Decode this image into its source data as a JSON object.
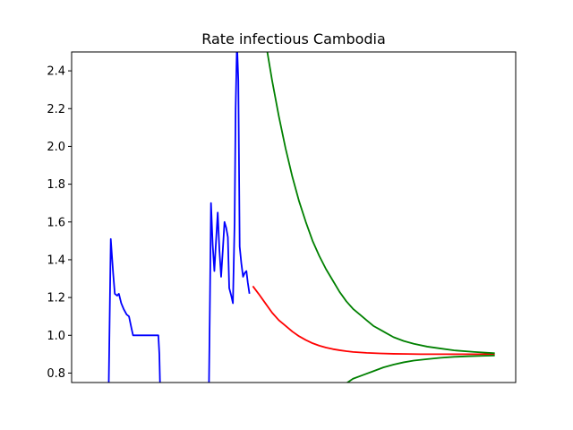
{
  "chart_data": {
    "type": "line",
    "title": "Rate infectious Cambodia",
    "xlabel": "",
    "ylabel": "",
    "ylim": [
      0.75,
      2.5
    ],
    "xlim": [
      -3.4,
      128.2
    ],
    "grid": false,
    "x_ticks_shown": false,
    "yticks": [
      0.8,
      1.0,
      1.2,
      1.4,
      1.6,
      1.8,
      2.0,
      2.2,
      2.4
    ],
    "series": [
      {
        "color": "#0000ff",
        "segments": [
          [
            [
              7.6,
              0.74
            ],
            [
              7.8,
              1.0
            ],
            [
              8.2,
              1.51
            ],
            [
              8.9,
              1.33
            ],
            [
              9.4,
              1.22
            ],
            [
              10.1,
              1.21
            ],
            [
              10.6,
              1.22
            ],
            [
              11.3,
              1.17
            ],
            [
              12.0,
              1.14
            ],
            [
              12.9,
              1.11
            ],
            [
              13.6,
              1.1
            ],
            [
              14.3,
              1.04
            ],
            [
              14.8,
              1.0
            ],
            [
              16.0,
              1.0
            ],
            [
              17.6,
              1.0
            ],
            [
              19.3,
              1.0
            ],
            [
              20.7,
              1.0
            ],
            [
              22.3,
              1.0
            ],
            [
              22.6,
              0.9
            ],
            [
              22.8,
              0.74
            ]
          ],
          [
            [
              37.3,
              0.74
            ],
            [
              37.6,
              1.2
            ],
            [
              37.9,
              1.7
            ],
            [
              38.4,
              1.48
            ],
            [
              38.9,
              1.34
            ],
            [
              39.4,
              1.5
            ],
            [
              39.9,
              1.65
            ],
            [
              40.4,
              1.45
            ],
            [
              40.9,
              1.31
            ],
            [
              41.4,
              1.45
            ],
            [
              41.9,
              1.6
            ],
            [
              42.4,
              1.57
            ],
            [
              42.9,
              1.52
            ],
            [
              43.3,
              1.25
            ],
            [
              43.9,
              1.21
            ],
            [
              44.4,
              1.17
            ],
            [
              44.9,
              1.6
            ],
            [
              45.2,
              2.2
            ],
            [
              45.6,
              2.55
            ],
            [
              46.0,
              2.35
            ],
            [
              46.4,
              1.47
            ],
            [
              46.9,
              1.38
            ],
            [
              47.4,
              1.31
            ],
            [
              47.9,
              1.33
            ],
            [
              48.4,
              1.34
            ],
            [
              48.8,
              1.28
            ],
            [
              49.3,
              1.22
            ]
          ]
        ]
      },
      {
        "color": "#ff0000",
        "points": [
          [
            50.3,
            1.26
          ],
          [
            52,
            1.22
          ],
          [
            54,
            1.17
          ],
          [
            56,
            1.12
          ],
          [
            58,
            1.08
          ],
          [
            60,
            1.05
          ],
          [
            62,
            1.02
          ],
          [
            64,
            0.995
          ],
          [
            66,
            0.975
          ],
          [
            68,
            0.958
          ],
          [
            70,
            0.945
          ],
          [
            72,
            0.935
          ],
          [
            74,
            0.927
          ],
          [
            76,
            0.921
          ],
          [
            78,
            0.916
          ],
          [
            80,
            0.912
          ],
          [
            84,
            0.907
          ],
          [
            88,
            0.904
          ],
          [
            92,
            0.902
          ],
          [
            96,
            0.901
          ],
          [
            100,
            0.9
          ],
          [
            110,
            0.9
          ],
          [
            122,
            0.9
          ]
        ]
      },
      {
        "color": "#008000",
        "points": [
          [
            54.5,
            2.51
          ],
          [
            56,
            2.35
          ],
          [
            58,
            2.16
          ],
          [
            60,
            1.99
          ],
          [
            62,
            1.84
          ],
          [
            64,
            1.71
          ],
          [
            66,
            1.6
          ],
          [
            68,
            1.5
          ],
          [
            70,
            1.42
          ],
          [
            72,
            1.35
          ],
          [
            74,
            1.29
          ],
          [
            76,
            1.23
          ],
          [
            78,
            1.18
          ],
          [
            80,
            1.14
          ],
          [
            82,
            1.11
          ],
          [
            84,
            1.08
          ],
          [
            86,
            1.05
          ],
          [
            88,
            1.03
          ],
          [
            90,
            1.01
          ],
          [
            92,
            0.99
          ],
          [
            95,
            0.97
          ],
          [
            98,
            0.955
          ],
          [
            102,
            0.94
          ],
          [
            106,
            0.93
          ],
          [
            110,
            0.92
          ],
          [
            116,
            0.912
          ],
          [
            122,
            0.905
          ]
        ]
      },
      {
        "color": "#008000",
        "points": [
          [
            77.5,
            0.74
          ],
          [
            80,
            0.77
          ],
          [
            83,
            0.79
          ],
          [
            86,
            0.81
          ],
          [
            89,
            0.83
          ],
          [
            92,
            0.845
          ],
          [
            95,
            0.857
          ],
          [
            98,
            0.866
          ],
          [
            102,
            0.874
          ],
          [
            106,
            0.881
          ],
          [
            110,
            0.886
          ],
          [
            114,
            0.889
          ],
          [
            118,
            0.891
          ],
          [
            122,
            0.893
          ]
        ]
      }
    ]
  }
}
